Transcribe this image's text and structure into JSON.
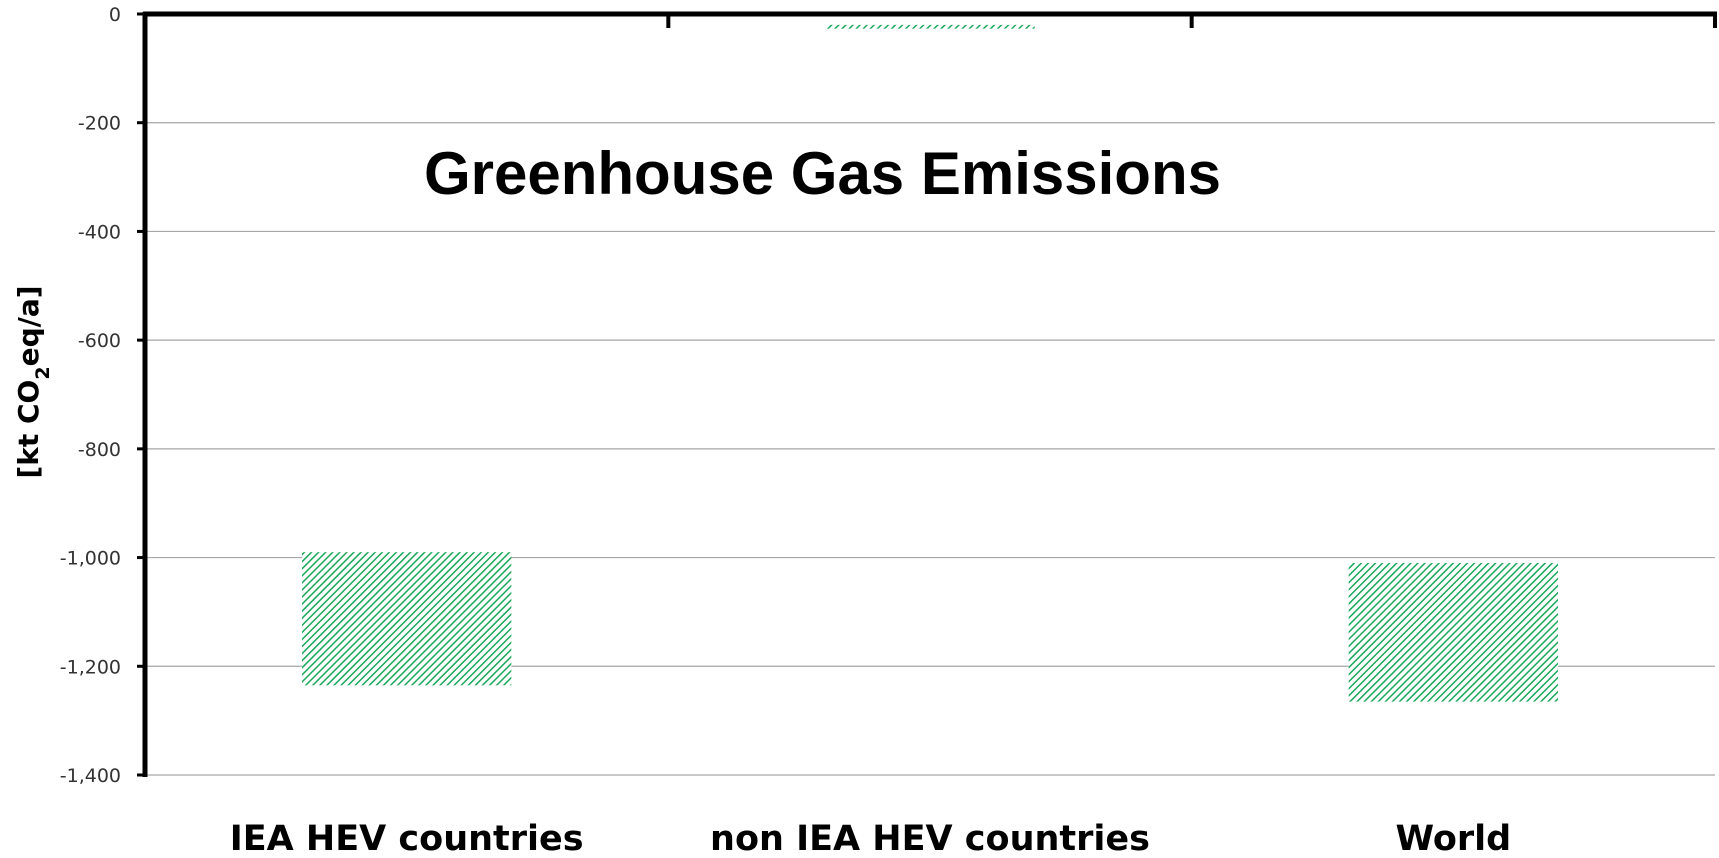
{
  "chart_data": {
    "type": "bar",
    "title": "Greenhouse Gas Emissions",
    "ylabel": "[kt CO2eq/a]",
    "ylabel_parts": {
      "prefix": "[kt CO",
      "subscript": "2",
      "suffix": "eq/a]"
    },
    "categories": [
      "IEA HEV countries",
      "non IEA HEV countries",
      "World"
    ],
    "bars": [
      {
        "category": "IEA HEV countries",
        "top": -990,
        "bottom": -1235
      },
      {
        "category": "non IEA HEV countries",
        "top": -20,
        "bottom": -27
      },
      {
        "category": "World",
        "top": -1010,
        "bottom": -1265
      }
    ],
    "ylim": [
      -1400,
      0
    ],
    "yticks": [
      0,
      -200,
      -400,
      -600,
      -800,
      -1000,
      -1200,
      -1400
    ],
    "ytick_labels": [
      "0",
      "-200",
      "-400",
      "-600",
      "-800",
      "-1,000",
      "-1,200",
      "-1,400"
    ],
    "grid": true,
    "bar_fill": "hatched green",
    "colors": {
      "bar": "#1aa85a",
      "grid": "#a6a6a6",
      "axis": "#000000"
    }
  }
}
